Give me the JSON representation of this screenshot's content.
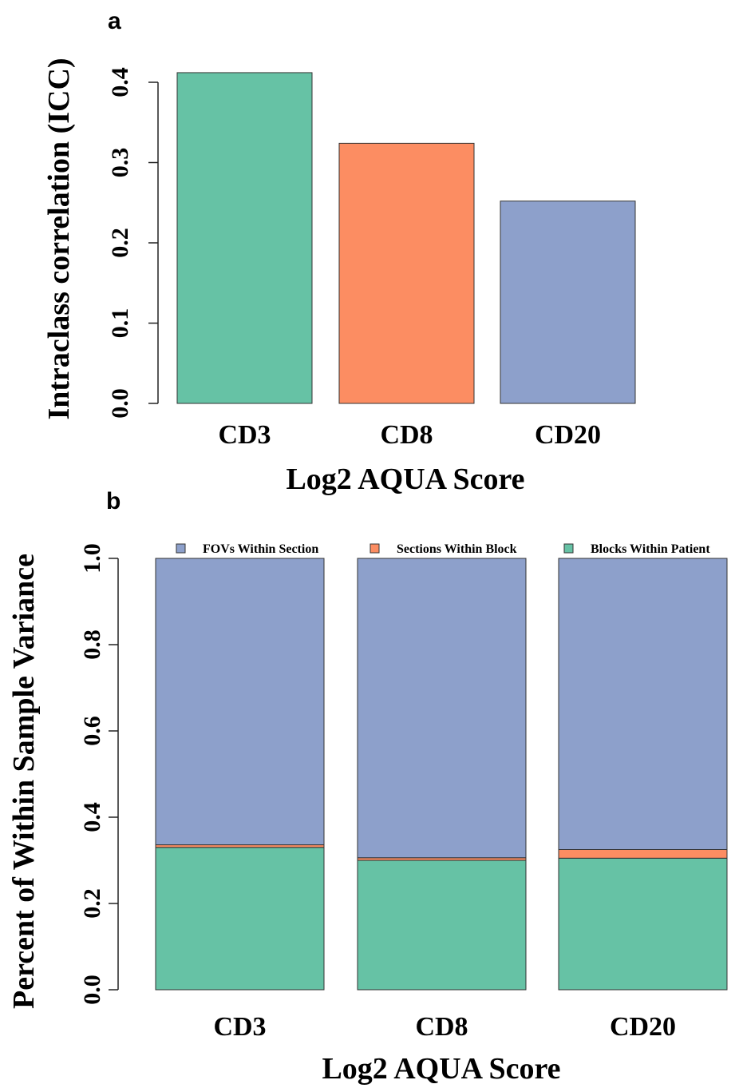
{
  "chart_data": [
    {
      "type": "bar",
      "panel_label": "a",
      "categories": [
        "CD3",
        "CD8",
        "CD20"
      ],
      "values": [
        0.412,
        0.324,
        0.252
      ],
      "colors": [
        "#66c2a5",
        "#fc8d62",
        "#8da0cb"
      ],
      "xlabel": "Log2 AQUA Score",
      "ylabel": "Intraclass correlation (ICC)",
      "ylim": [
        0,
        0.4
      ],
      "yticks": [
        "0.0",
        "0.1",
        "0.2",
        "0.3",
        "0.4"
      ],
      "grid": false
    },
    {
      "type": "bar",
      "stacked": true,
      "panel_label": "b",
      "categories": [
        "CD3",
        "CD8",
        "CD20"
      ],
      "series": [
        {
          "name": "Blocks Within Patient",
          "values": [
            0.33,
            0.3,
            0.305
          ],
          "color": "#66c2a5"
        },
        {
          "name": "Sections Within Block",
          "values": [
            0.006,
            0.006,
            0.02
          ],
          "color": "#fc8d62"
        },
        {
          "name": "FOVs Within Section",
          "values": [
            0.664,
            0.694,
            0.675
          ],
          "color": "#8da0cb"
        }
      ],
      "legend_order": [
        "FOVs Within Section",
        "Sections Within Block",
        "Blocks Within Patient"
      ],
      "legend_position": "top",
      "xlabel": "Log2 AQUA Score",
      "ylabel": "Percent of Within Sample Variance",
      "ylim": [
        0,
        1.0
      ],
      "yticks": [
        "0.0",
        "0.2",
        "0.4",
        "0.6",
        "0.8",
        "1.0"
      ],
      "grid": false
    }
  ]
}
